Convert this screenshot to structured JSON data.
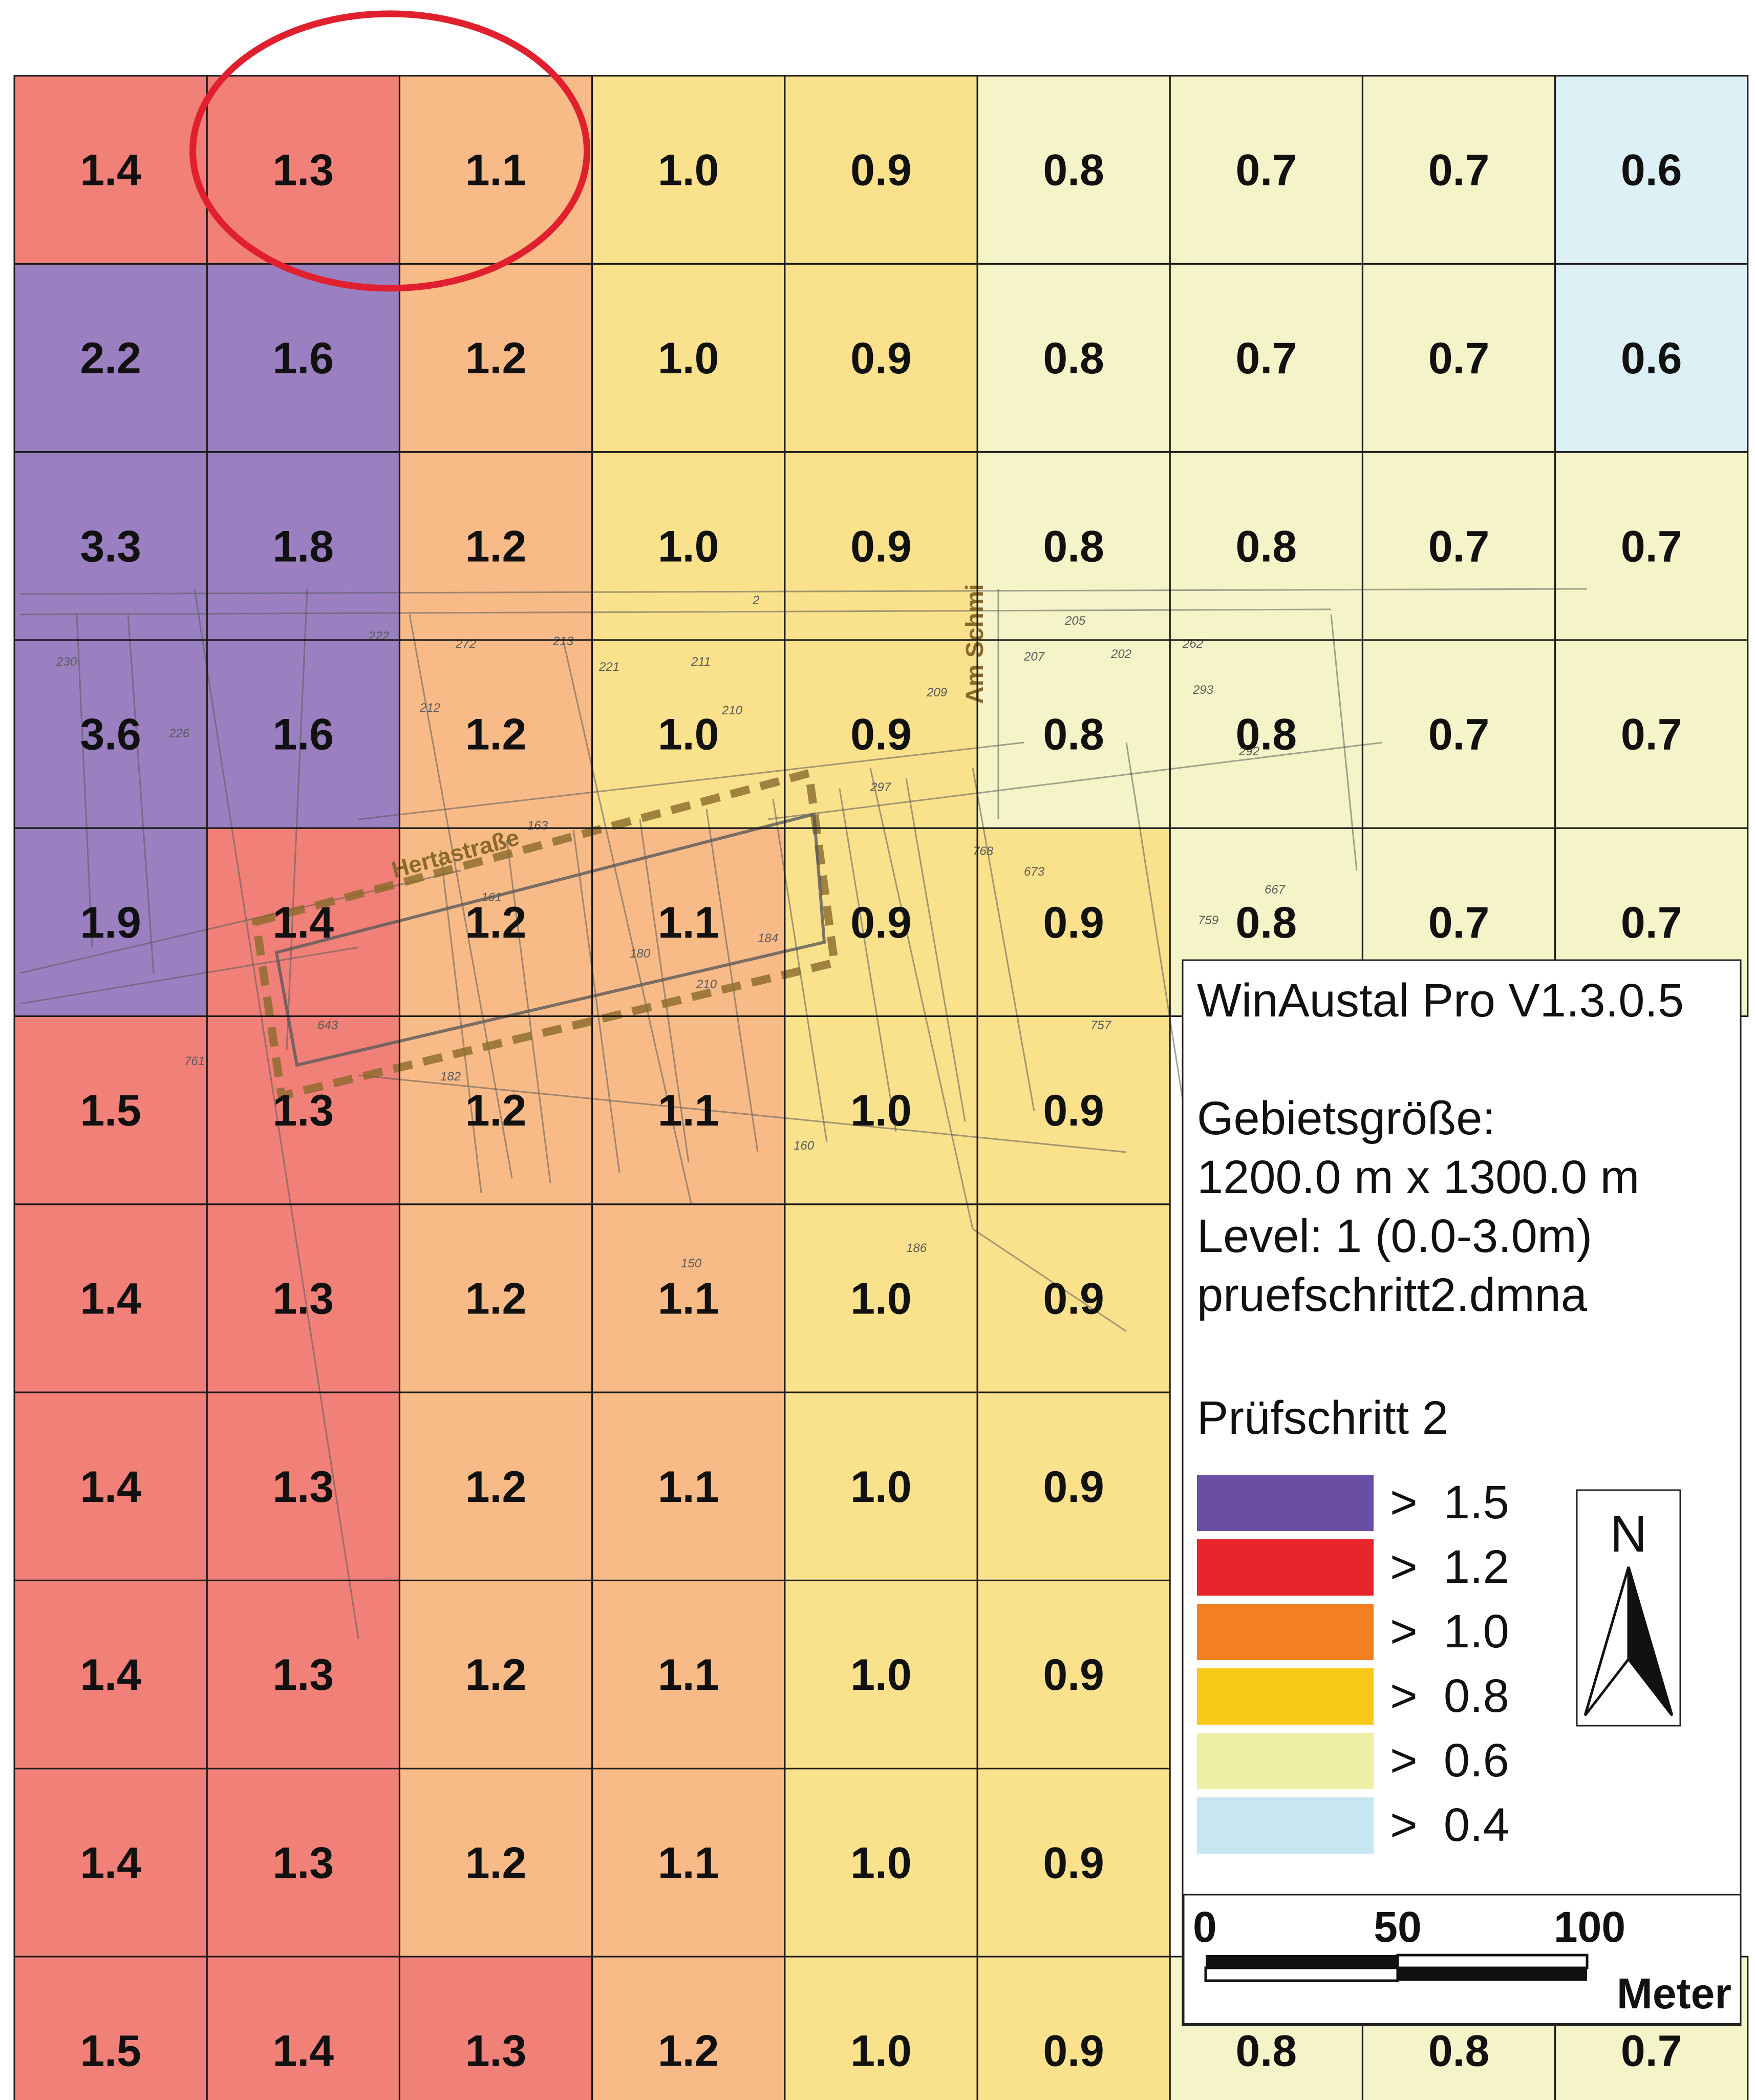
{
  "grid": {
    "rows": [
      [
        "1.4",
        "1.3",
        "1.1",
        "1.0",
        "0.9",
        "0.8",
        "0.7",
        "0.7",
        "0.6"
      ],
      [
        "2.2",
        "1.6",
        "1.2",
        "1.0",
        "0.9",
        "0.8",
        "0.7",
        "0.7",
        "0.6"
      ],
      [
        "3.3",
        "1.8",
        "1.2",
        "1.0",
        "0.9",
        "0.8",
        "0.8",
        "0.7",
        "0.7"
      ],
      [
        "3.6",
        "1.6",
        "1.2",
        "1.0",
        "0.9",
        "0.8",
        "0.8",
        "0.7",
        "0.7"
      ],
      [
        "1.9",
        "1.4",
        "1.2",
        "1.1",
        "0.9",
        "0.9",
        "0.8",
        "0.7",
        "0.7"
      ],
      [
        "1.5",
        "1.3",
        "1.2",
        "1.1",
        "1.0",
        "0.9",
        "",
        "",
        ""
      ],
      [
        "1.4",
        "1.3",
        "1.2",
        "1.1",
        "1.0",
        "0.9",
        "",
        "",
        ""
      ],
      [
        "1.4",
        "1.3",
        "1.2",
        "1.1",
        "1.0",
        "0.9",
        "",
        "",
        ""
      ],
      [
        "1.4",
        "1.3",
        "1.2",
        "1.1",
        "1.0",
        "0.9",
        "",
        "",
        ""
      ],
      [
        "1.4",
        "1.3",
        "1.2",
        "1.1",
        "1.0",
        "0.9",
        "",
        "",
        ""
      ],
      [
        "1.5",
        "1.4",
        "1.3",
        "1.2",
        "1.0",
        "0.9",
        "0.8",
        "0.8",
        "0.7"
      ]
    ],
    "highlighted_cell": {
      "row": 0,
      "col": 1
    }
  },
  "legend": {
    "title": "WinAustal Pro V1.3.0.5",
    "area_label": "Gebietsgröße:",
    "area_value": "1200.0 m x 1300.0 m",
    "level": "Level: 1 (0.0-3.0m)",
    "file": "pruefschritt2.dmna",
    "scenario": "Prüfschritt 2",
    "classes": [
      {
        "label": ">  1.5",
        "threshold": 1.5,
        "color": "#6a4ea3",
        "fill": "#9a80c0"
      },
      {
        "label": ">  1.2",
        "threshold": 1.2,
        "color": "#e8252a",
        "fill": "#f08078"
      },
      {
        "label": ">  1.0",
        "threshold": 1.0,
        "color": "#f27f22",
        "fill": "#f8bb88"
      },
      {
        "label": ">  0.8",
        "threshold": 0.8,
        "color": "#f9c917",
        "fill": "#fae18c"
      },
      {
        "label": ">  0.6",
        "threshold": 0.6,
        "color": "#eeeea6",
        "fill": "#f5f4c8"
      },
      {
        "label": ">  0.4",
        "threshold": 0.4,
        "color": "#c6e6f2",
        "fill": "#dcf0f6"
      }
    ]
  },
  "north_arrow": {
    "label": "N",
    "icon": "north-arrow-icon"
  },
  "scale_bar": {
    "ticks": [
      "0",
      "50",
      "100"
    ],
    "unit": "Meter"
  },
  "annotation_color": "#e0202f",
  "map_labels": {
    "street1": "Hertastraße",
    "street2": "Am Schmi",
    "parcels": [
      "230",
      "226",
      "222",
      "272",
      "212",
      "221",
      "213",
      "211",
      "210",
      "209",
      "207",
      "205",
      "202",
      "262",
      "293",
      "292",
      "297",
      "768",
      "673",
      "667",
      "759",
      "757",
      "761",
      "643",
      "180",
      "182",
      "186",
      "150",
      "160",
      "161",
      "163",
      "184",
      "210",
      "2"
    ]
  }
}
